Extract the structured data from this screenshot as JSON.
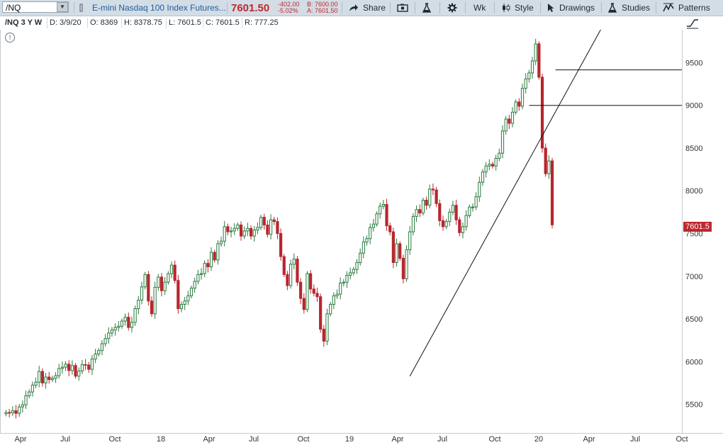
{
  "toolbar": {
    "symbol": "/NQ",
    "description": "E-mini Nasdaq 100 Index Futures...",
    "last_price": "7601.50",
    "net_change": "-402.00",
    "pct_change": "-5.02%",
    "bid": "B: 7600.00",
    "ask": "A: 7601.50",
    "share_label": "Share",
    "period_label": "Wk",
    "style_label": "Style",
    "drawings_label": "Drawings",
    "studies_label": "Studies",
    "patterns_label": "Patterns",
    "icons": [
      "dropdown-icon",
      "share-icon",
      "snapshot-icon",
      "flask-icon",
      "gear-icon",
      "candlestick-icon",
      "cursor-arrow-icon",
      "flask-studies-icon",
      "patterns-icon"
    ]
  },
  "infobar": {
    "title": "/NQ 3 Y W",
    "date": "D: 3/9/20",
    "open": "O: 8369",
    "high": "H: 8378.75",
    "low": "L: 7601.5",
    "close": "C: 7601.5",
    "range": "R: 777.25"
  },
  "price_label": "7601.5",
  "colors": {
    "up": "#2a7a3e",
    "down": "#b8262d",
    "accent": "#c0272d",
    "toolbar": "#d3dde6",
    "link": "#1f5d9b"
  },
  "chart_data": {
    "type": "candlestick",
    "interval": "weekly",
    "x_ticks": [
      "Apr",
      "Jul",
      "Oct",
      "18",
      "Apr",
      "Jul",
      "Oct",
      "19",
      "Apr",
      "Jul",
      "Oct",
      "20",
      "Apr",
      "Jul",
      "Oct"
    ],
    "y_ticks": [
      5500,
      6000,
      6500,
      7000,
      7500,
      8000,
      8500,
      9000,
      9500
    ],
    "ylim": [
      5165,
      9885
    ],
    "last_price": 7601.5,
    "horizontal_lines": [
      9415,
      9000
    ],
    "trendline": [
      {
        "week": 122,
        "price": 5830
      },
      {
        "week": 177,
        "price": 9700
      }
    ],
    "closes": [
      5405,
      5400,
      5425,
      5395,
      5470,
      5495,
      5600,
      5645,
      5725,
      5760,
      5885,
      5750,
      5820,
      5790,
      5805,
      5835,
      5920,
      5935,
      5970,
      5895,
      5955,
      5830,
      5890,
      5965,
      5960,
      5910,
      6030,
      6090,
      6130,
      6210,
      6270,
      6335,
      6370,
      6400,
      6415,
      6475,
      6520,
      6400,
      6460,
      6620,
      6720,
      6875,
      7020,
      6710,
      6560,
      6870,
      6990,
      6830,
      6930,
      7030,
      7130,
      6950,
      6620,
      6670,
      6710,
      6770,
      6860,
      6940,
      7020,
      7030,
      7150,
      7110,
      7280,
      7190,
      7380,
      7410,
      7580,
      7520,
      7530,
      7560,
      7600,
      7470,
      7530,
      7560,
      7470,
      7540,
      7570,
      7690,
      7600,
      7490,
      7660,
      7640,
      7500,
      7230,
      7020,
      6890,
      7140,
      7200,
      6930,
      6740,
      6610,
      7030,
      6850,
      6800,
      6760,
      6380,
      6240,
      6560,
      6670,
      6770,
      6790,
      6920,
      6930,
      7010,
      7040,
      7080,
      7160,
      7270,
      7400,
      7440,
      7570,
      7610,
      7730,
      7820,
      7840,
      7590,
      7520,
      7160,
      7380,
      7210,
      6970,
      7310,
      7520,
      7700,
      7780,
      7740,
      7890,
      7830,
      8020,
      8010,
      7850,
      7650,
      7580,
      7640,
      7750,
      7830,
      7660,
      7510,
      7580,
      7710,
      7810,
      7810,
      7930,
      8100,
      8220,
      8290,
      8310,
      8290,
      8380,
      8440,
      8700,
      8840,
      8790,
      8920,
      9040,
      8990,
      9200,
      9310,
      9380,
      9520,
      9720,
      9330,
      8500,
      8200,
      8350,
      7601.5
    ]
  }
}
